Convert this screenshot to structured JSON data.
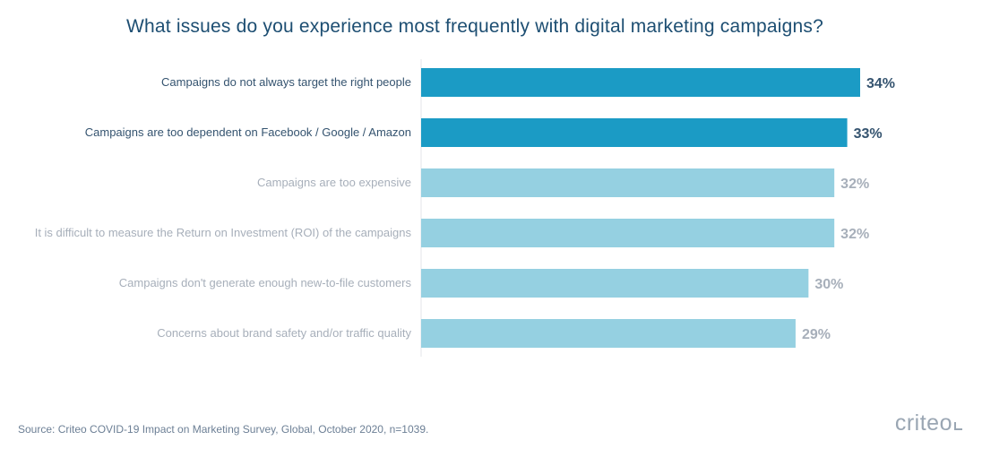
{
  "chart_data": {
    "type": "bar",
    "orientation": "horizontal",
    "title": "What issues do you experience most frequently with digital marketing campaigns?",
    "categories": [
      "Campaigns do not always target the right people",
      "Campaigns are too dependent on Facebook / Google / Amazon",
      "Campaigns are too expensive",
      "It is difficult to measure the Return on Investment (ROI) of the campaigns",
      "Campaigns don't generate enough new-to-file customers",
      "Concerns about brand safety and/or traffic quality"
    ],
    "values": [
      34,
      33,
      32,
      32,
      30,
      29
    ],
    "value_labels": [
      "34%",
      "33%",
      "32%",
      "32%",
      "30%",
      "29%"
    ],
    "highlighted": [
      true,
      true,
      false,
      false,
      false,
      false
    ],
    "xlim": [
      0,
      34
    ],
    "colors": {
      "highlight_bar": "#1b9bc5",
      "normal_bar": "#95d0e1",
      "highlight_label": "#34536f",
      "normal_label": "#a7afba",
      "highlight_value": "#34536f",
      "normal_value": "#a7afba",
      "axis": "#e3e6ea"
    }
  },
  "source": "Source: Criteo COVID-19 Impact on Marketing Survey, Global, October 2020, n=1039.",
  "brand": {
    "name": "criteo",
    "icon": "criteo-logo-dot"
  }
}
